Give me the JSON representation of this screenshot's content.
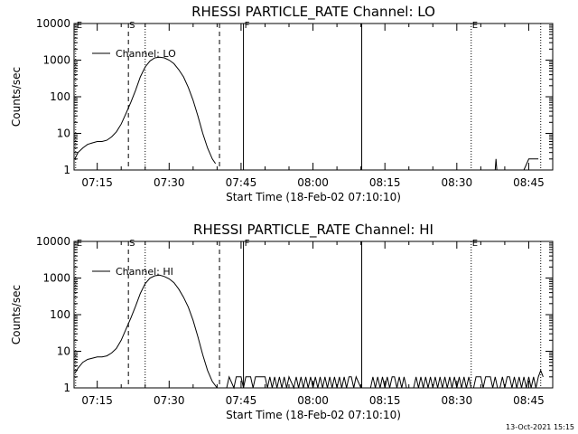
{
  "footer": {
    "timestamp": "13-Oct-2021 15:15"
  },
  "chart_data": [
    {
      "type": "line",
      "title": "RHESSI PARTICLE_RATE Channel: LO",
      "xlabel": "Start Time (18-Feb-02 07:10:10)",
      "ylabel": "Counts/sec",
      "yscale": "log",
      "ylim": [
        1,
        10000
      ],
      "xlim": [
        "07:10:10",
        "08:50:00"
      ],
      "x_ticks": [
        "07:15",
        "07:30",
        "07:45",
        "08:00",
        "08:15",
        "08:30",
        "08:45"
      ],
      "y_ticks": [
        "1",
        "10",
        "100",
        "1000",
        "10000"
      ],
      "legend": {
        "position": "top-left",
        "entries": [
          "Channel: LO"
        ]
      },
      "markers": [
        {
          "label": "E",
          "time": "07:10:30",
          "style": "dotted"
        },
        {
          "label": "S",
          "time": "07:21:30",
          "style": "dashed"
        },
        {
          "label": "",
          "time": "07:25:00",
          "style": "dotted"
        },
        {
          "label": "",
          "time": "07:40:30",
          "style": "dashed"
        },
        {
          "label": "F",
          "time": "07:45:30",
          "style": "solid"
        },
        {
          "label": "",
          "time": "08:10:10",
          "style": "solid"
        },
        {
          "label": "E",
          "time": "08:33:00",
          "style": "dotted"
        },
        {
          "label": "",
          "time": "08:47:30",
          "style": "dotted"
        }
      ],
      "series": [
        {
          "name": "Channel: LO",
          "segments": [
            [
              [
                "07:10:20",
                2
              ],
              [
                "07:11:00",
                3
              ],
              [
                "07:12:00",
                4
              ],
              [
                "07:13:00",
                5
              ],
              [
                "07:14:00",
                5.5
              ],
              [
                "07:15:00",
                6
              ],
              [
                "07:16:00",
                6
              ],
              [
                "07:17:00",
                6.5
              ],
              [
                "07:18:00",
                8
              ],
              [
                "07:19:00",
                11
              ],
              [
                "07:20:00",
                18
              ],
              [
                "07:21:00",
                35
              ],
              [
                "07:22:00",
                70
              ],
              [
                "07:23:00",
                150
              ],
              [
                "07:24:00",
                350
              ],
              [
                "07:25:00",
                650
              ],
              [
                "07:26:00",
                950
              ],
              [
                "07:27:00",
                1150
              ],
              [
                "07:28:00",
                1200
              ],
              [
                "07:29:00",
                1150
              ],
              [
                "07:30:00",
                1000
              ],
              [
                "07:31:00",
                800
              ],
              [
                "07:32:00",
                550
              ],
              [
                "07:33:00",
                350
              ],
              [
                "07:34:00",
                180
              ],
              [
                "07:35:00",
                80
              ],
              [
                "07:36:00",
                30
              ],
              [
                "07:37:00",
                10
              ],
              [
                "07:38:00",
                4
              ],
              [
                "07:39:00",
                2
              ],
              [
                "07:39:40",
                1.5
              ]
            ],
            [
              [
                "08:38:00",
                1
              ],
              [
                "08:38:10",
                2
              ],
              [
                "08:38:20",
                1
              ]
            ],
            [
              [
                "08:44:00",
                1
              ],
              [
                "08:45:00",
                2
              ],
              [
                "08:47:00",
                2
              ]
            ]
          ]
        }
      ]
    },
    {
      "type": "line",
      "title": "RHESSI PARTICLE_RATE Channel: HI",
      "xlabel": "Start Time (18-Feb-02 07:10:10)",
      "ylabel": "Counts/sec",
      "yscale": "log",
      "ylim": [
        1,
        10000
      ],
      "xlim": [
        "07:10:10",
        "08:50:00"
      ],
      "x_ticks": [
        "07:15",
        "07:30",
        "07:45",
        "08:00",
        "08:15",
        "08:30",
        "08:45"
      ],
      "y_ticks": [
        "1",
        "10",
        "100",
        "1000",
        "10000"
      ],
      "legend": {
        "position": "top-left",
        "entries": [
          "Channel: HI"
        ]
      },
      "markers": [
        {
          "label": "E",
          "time": "07:10:30",
          "style": "dotted"
        },
        {
          "label": "S",
          "time": "07:21:30",
          "style": "dashed"
        },
        {
          "label": "",
          "time": "07:25:00",
          "style": "dotted"
        },
        {
          "label": "",
          "time": "07:40:30",
          "style": "dashed"
        },
        {
          "label": "F",
          "time": "07:45:30",
          "style": "solid"
        },
        {
          "label": "",
          "time": "08:10:10",
          "style": "solid"
        },
        {
          "label": "E",
          "time": "08:33:00",
          "style": "dotted"
        },
        {
          "label": "",
          "time": "08:47:30",
          "style": "dotted"
        }
      ],
      "series": [
        {
          "name": "Channel: HI",
          "segments": [
            [
              [
                "07:10:20",
                2.5
              ],
              [
                "07:11:00",
                3.5
              ],
              [
                "07:12:00",
                5
              ],
              [
                "07:13:00",
                6
              ],
              [
                "07:14:00",
                6.5
              ],
              [
                "07:15:00",
                7
              ],
              [
                "07:16:00",
                7
              ],
              [
                "07:17:00",
                7.5
              ],
              [
                "07:18:00",
                9
              ],
              [
                "07:19:00",
                12
              ],
              [
                "07:20:00",
                20
              ],
              [
                "07:21:00",
                40
              ],
              [
                "07:22:00",
                80
              ],
              [
                "07:23:00",
                170
              ],
              [
                "07:24:00",
                380
              ],
              [
                "07:25:00",
                700
              ],
              [
                "07:26:00",
                1000
              ],
              [
                "07:27:00",
                1150
              ],
              [
                "07:28:00",
                1200
              ],
              [
                "07:29:00",
                1100
              ],
              [
                "07:30:00",
                950
              ],
              [
                "07:31:00",
                750
              ],
              [
                "07:32:00",
                500
              ],
              [
                "07:33:00",
                300
              ],
              [
                "07:34:00",
                160
              ],
              [
                "07:35:00",
                70
              ],
              [
                "07:36:00",
                25
              ],
              [
                "07:37:00",
                8
              ],
              [
                "07:38:00",
                3
              ],
              [
                "07:39:00",
                1.5
              ],
              [
                "07:40:00",
                1
              ],
              [
                "07:42:00",
                1
              ],
              [
                "07:42:30",
                2
              ],
              [
                "07:43:30",
                1
              ],
              [
                "07:44:00",
                2
              ],
              [
                "07:45:00",
                2
              ],
              [
                "07:45:30",
                1
              ],
              [
                "07:46:00",
                2
              ],
              [
                "07:47:00",
                2
              ],
              [
                "07:47:30",
                1
              ],
              [
                "07:48:00",
                2
              ],
              [
                "07:49:00",
                2
              ],
              [
                "07:50:00",
                2
              ],
              [
                "07:50:30",
                1
              ],
              [
                "07:51:00",
                2
              ],
              [
                "07:51:30",
                1
              ],
              [
                "07:52:00",
                2
              ],
              [
                "07:52:30",
                1
              ],
              [
                "07:53:00",
                2
              ],
              [
                "07:53:30",
                1
              ],
              [
                "07:54:00",
                2
              ],
              [
                "07:54:30",
                1
              ],
              [
                "07:55:00",
                2
              ],
              [
                "07:56:00",
                1
              ],
              [
                "07:56:30",
                2
              ],
              [
                "07:57:00",
                1
              ],
              [
                "07:57:30",
                2
              ],
              [
                "07:58:00",
                1
              ],
              [
                "07:58:30",
                2
              ],
              [
                "07:59:00",
                1
              ],
              [
                "07:59:30",
                2
              ],
              [
                "08:00:00",
                1
              ],
              [
                "08:00:30",
                2
              ],
              [
                "08:01:00",
                1
              ],
              [
                "08:01:30",
                2
              ],
              [
                "08:02:00",
                1
              ],
              [
                "08:02:30",
                2
              ],
              [
                "08:03:00",
                1
              ],
              [
                "08:03:30",
                2
              ],
              [
                "08:04:00",
                1
              ],
              [
                "08:04:30",
                2
              ],
              [
                "08:05:00",
                1
              ],
              [
                "08:05:30",
                2
              ],
              [
                "08:06:00",
                1
              ],
              [
                "08:06:30",
                2
              ],
              [
                "08:07:00",
                1
              ],
              [
                "08:07:30",
                2
              ],
              [
                "08:08:00",
                2
              ],
              [
                "08:08:30",
                1
              ],
              [
                "08:09:00",
                2
              ],
              [
                "08:10:00",
                1
              ],
              [
                "08:12:00",
                1
              ],
              [
                "08:12:30",
                2
              ],
              [
                "08:13:00",
                1
              ],
              [
                "08:13:30",
                2
              ],
              [
                "08:14:00",
                1
              ],
              [
                "08:14:30",
                2
              ],
              [
                "08:15:00",
                1
              ],
              [
                "08:15:30",
                2
              ],
              [
                "08:16:00",
                1
              ],
              [
                "08:16:30",
                2
              ],
              [
                "08:17:00",
                2
              ],
              [
                "08:17:30",
                1
              ],
              [
                "08:18:00",
                2
              ],
              [
                "08:18:30",
                1
              ],
              [
                "08:19:00",
                2
              ],
              [
                "08:19:30",
                1
              ],
              [
                "08:20:00",
                1
              ],
              [
                "08:21:00",
                1
              ],
              [
                "08:21:30",
                2
              ],
              [
                "08:22:00",
                1
              ],
              [
                "08:22:30",
                2
              ],
              [
                "08:23:00",
                1
              ],
              [
                "08:23:30",
                2
              ],
              [
                "08:24:00",
                1
              ],
              [
                "08:24:30",
                2
              ],
              [
                "08:25:00",
                1
              ],
              [
                "08:25:30",
                2
              ],
              [
                "08:26:00",
                1
              ],
              [
                "08:26:30",
                2
              ],
              [
                "08:27:00",
                1
              ],
              [
                "08:27:30",
                2
              ],
              [
                "08:28:00",
                1
              ],
              [
                "08:28:30",
                2
              ],
              [
                "08:29:00",
                1
              ],
              [
                "08:29:30",
                2
              ],
              [
                "08:30:00",
                1
              ],
              [
                "08:30:30",
                2
              ],
              [
                "08:31:00",
                1
              ],
              [
                "08:31:30",
                2
              ],
              [
                "08:32:00",
                1
              ],
              [
                "08:32:30",
                2
              ],
              [
                "08:33:00",
                1
              ],
              [
                "08:33:30",
                1
              ],
              [
                "08:34:00",
                2
              ],
              [
                "08:35:00",
                2
              ],
              [
                "08:35:30",
                1
              ],
              [
                "08:36:00",
                2
              ],
              [
                "08:37:00",
                2
              ],
              [
                "08:37:30",
                1
              ],
              [
                "08:38:00",
                2
              ],
              [
                "08:38:30",
                1
              ],
              [
                "08:39:00",
                1
              ],
              [
                "08:39:30",
                2
              ],
              [
                "08:40:00",
                1
              ],
              [
                "08:40:30",
                2
              ],
              [
                "08:41:00",
                2
              ],
              [
                "08:41:30",
                1
              ],
              [
                "08:42:00",
                2
              ],
              [
                "08:42:30",
                1
              ],
              [
                "08:43:00",
                2
              ],
              [
                "08:43:30",
                1
              ],
              [
                "08:44:00",
                2
              ],
              [
                "08:44:30",
                1
              ],
              [
                "08:45:00",
                2
              ],
              [
                "08:45:30",
                1
              ],
              [
                "08:46:00",
                2
              ],
              [
                "08:46:30",
                1
              ],
              [
                "08:47:00",
                2
              ],
              [
                "08:47:30",
                3
              ],
              [
                "08:48:00",
                2
              ]
            ]
          ]
        }
      ]
    }
  ]
}
